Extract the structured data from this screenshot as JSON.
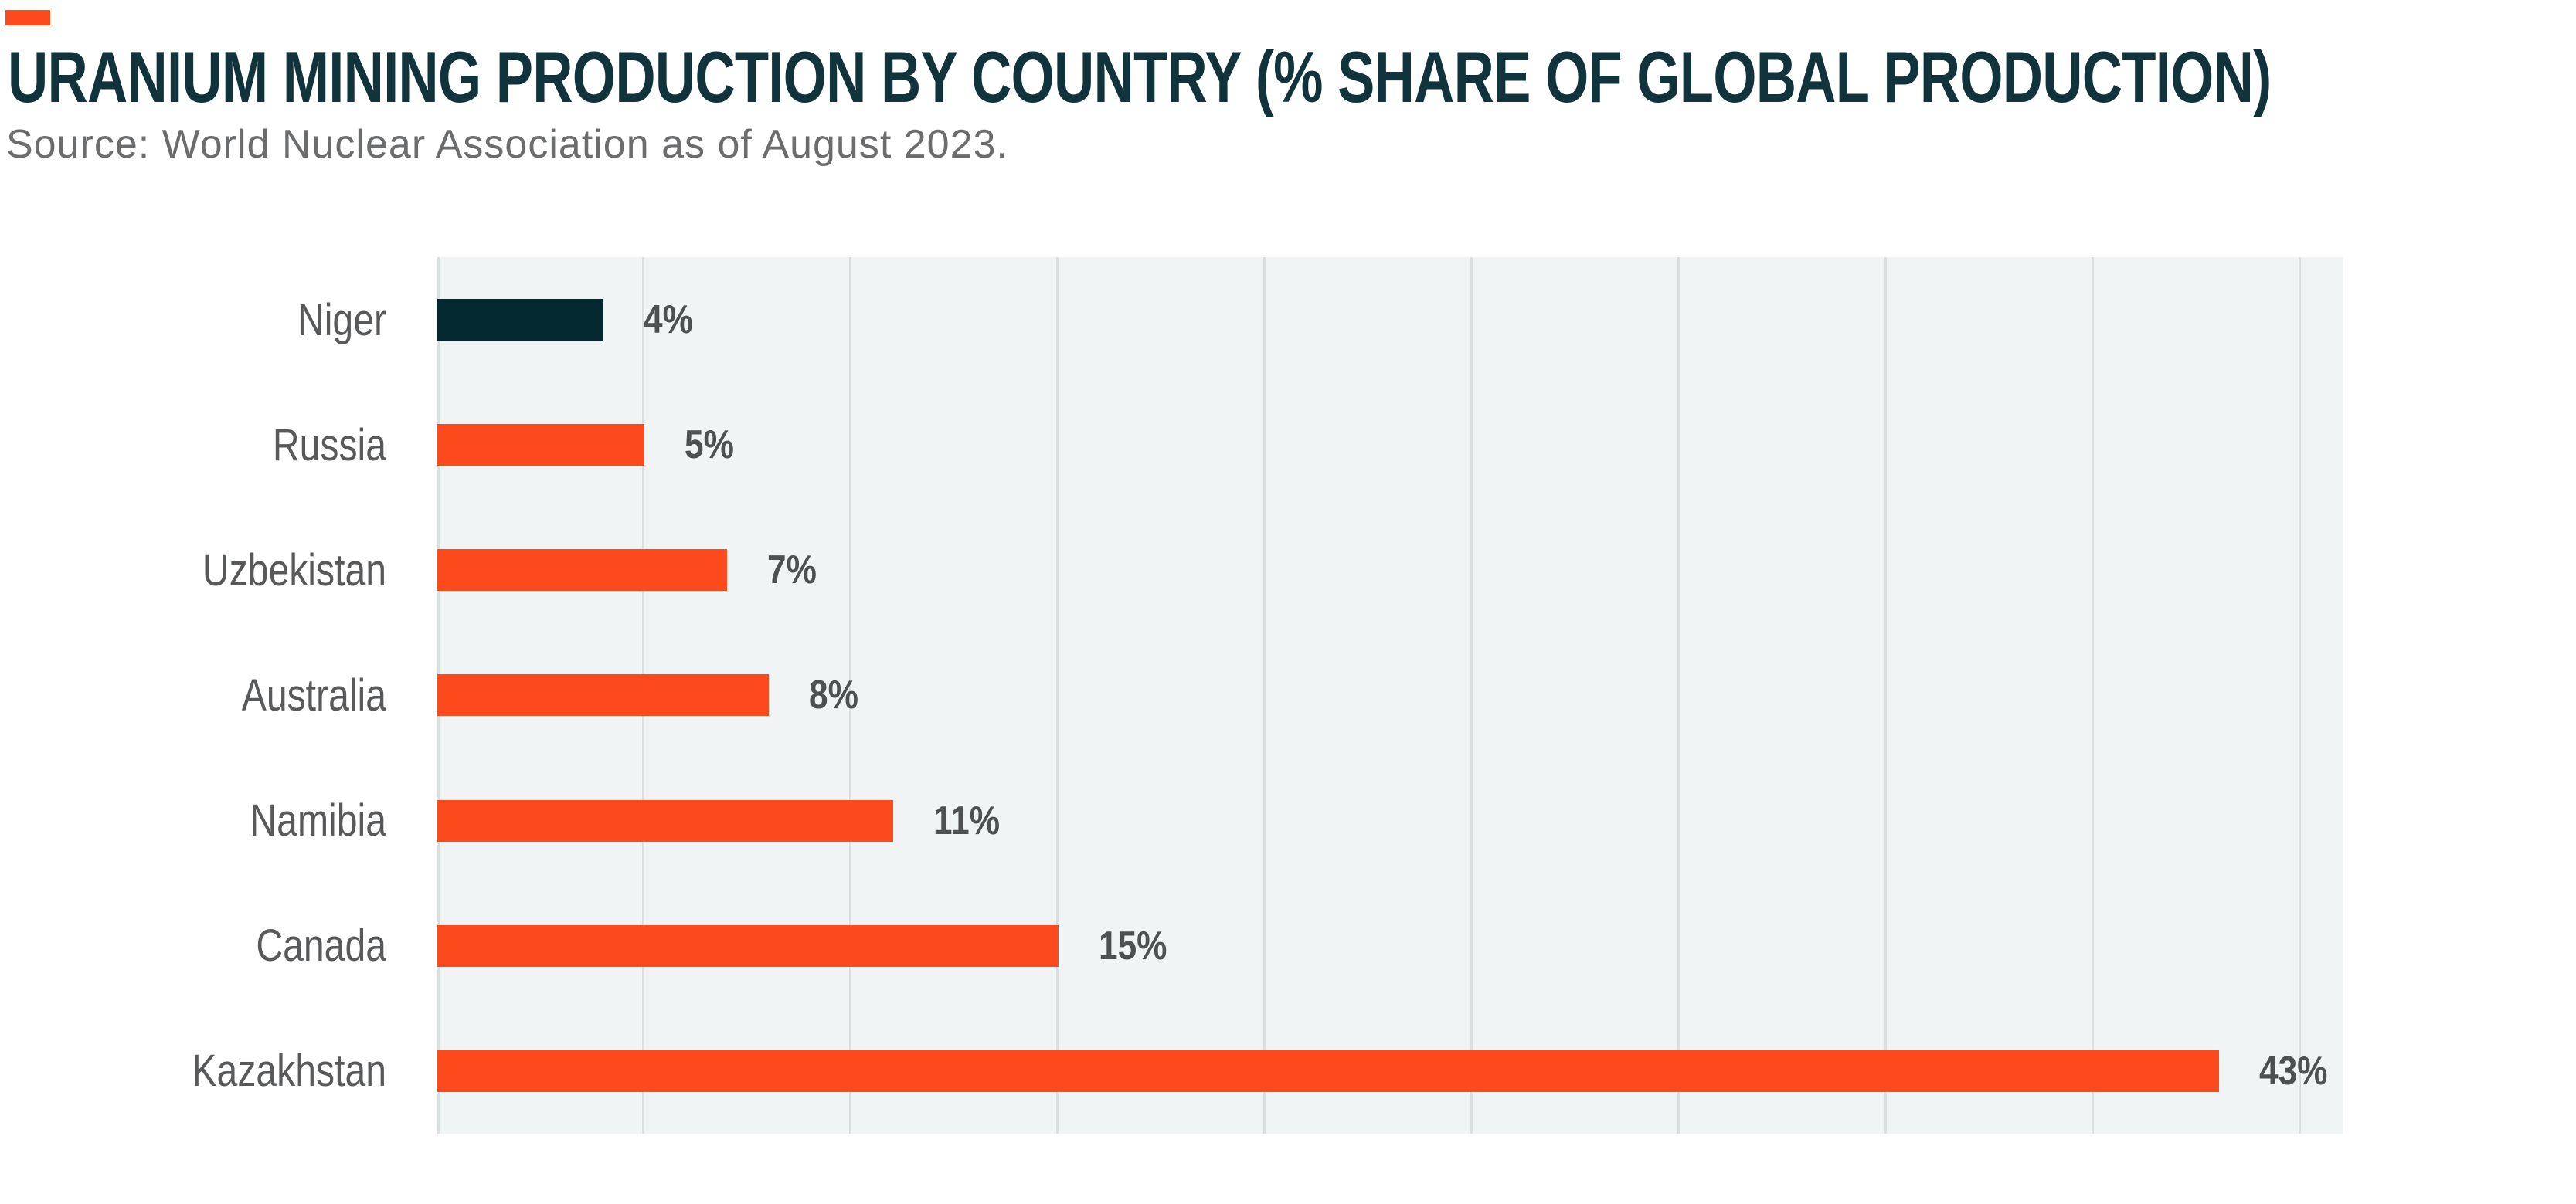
{
  "header": {
    "title": "URANIUM MINING PRODUCTION BY COUNTRY (% SHARE OF GLOBAL PRODUCTION)",
    "source": "Source: World Nuclear Association as of August 2023."
  },
  "colors": {
    "accent_orange": "#fc4a1c",
    "dark_teal": "#042830",
    "title_text": "#10333c",
    "source_text": "#6b6c6e",
    "category_text": "#58595b",
    "value_text": "#4f5052",
    "plot_bg": "#f0f4f5",
    "gridline": "#dadfe2"
  },
  "chart_data": {
    "type": "bar",
    "orientation": "horizontal",
    "title": "URANIUM MINING PRODUCTION BY COUNTRY (% SHARE OF GLOBAL PRODUCTION)",
    "source": "Source: World Nuclear Association as of August 2023.",
    "categories": [
      "Niger",
      "Russia",
      "Uzbekistan",
      "Australia",
      "Namibia",
      "Canada",
      "Kazakhstan"
    ],
    "values": [
      4,
      5,
      7,
      8,
      11,
      15,
      43
    ],
    "value_labels": [
      "4%",
      "5%",
      "7%",
      "8%",
      "11%",
      "15%",
      "43%"
    ],
    "unit": "% share of global production",
    "xlim": [
      0,
      46
    ],
    "gridline_step_pct": 5,
    "grid": "vertical-only",
    "axis_tick_labels": "none",
    "legend": "none",
    "bar_colors": [
      "#042830",
      "#fc4a1c",
      "#fc4a1c",
      "#fc4a1c",
      "#fc4a1c",
      "#fc4a1c",
      "#fc4a1c"
    ]
  }
}
